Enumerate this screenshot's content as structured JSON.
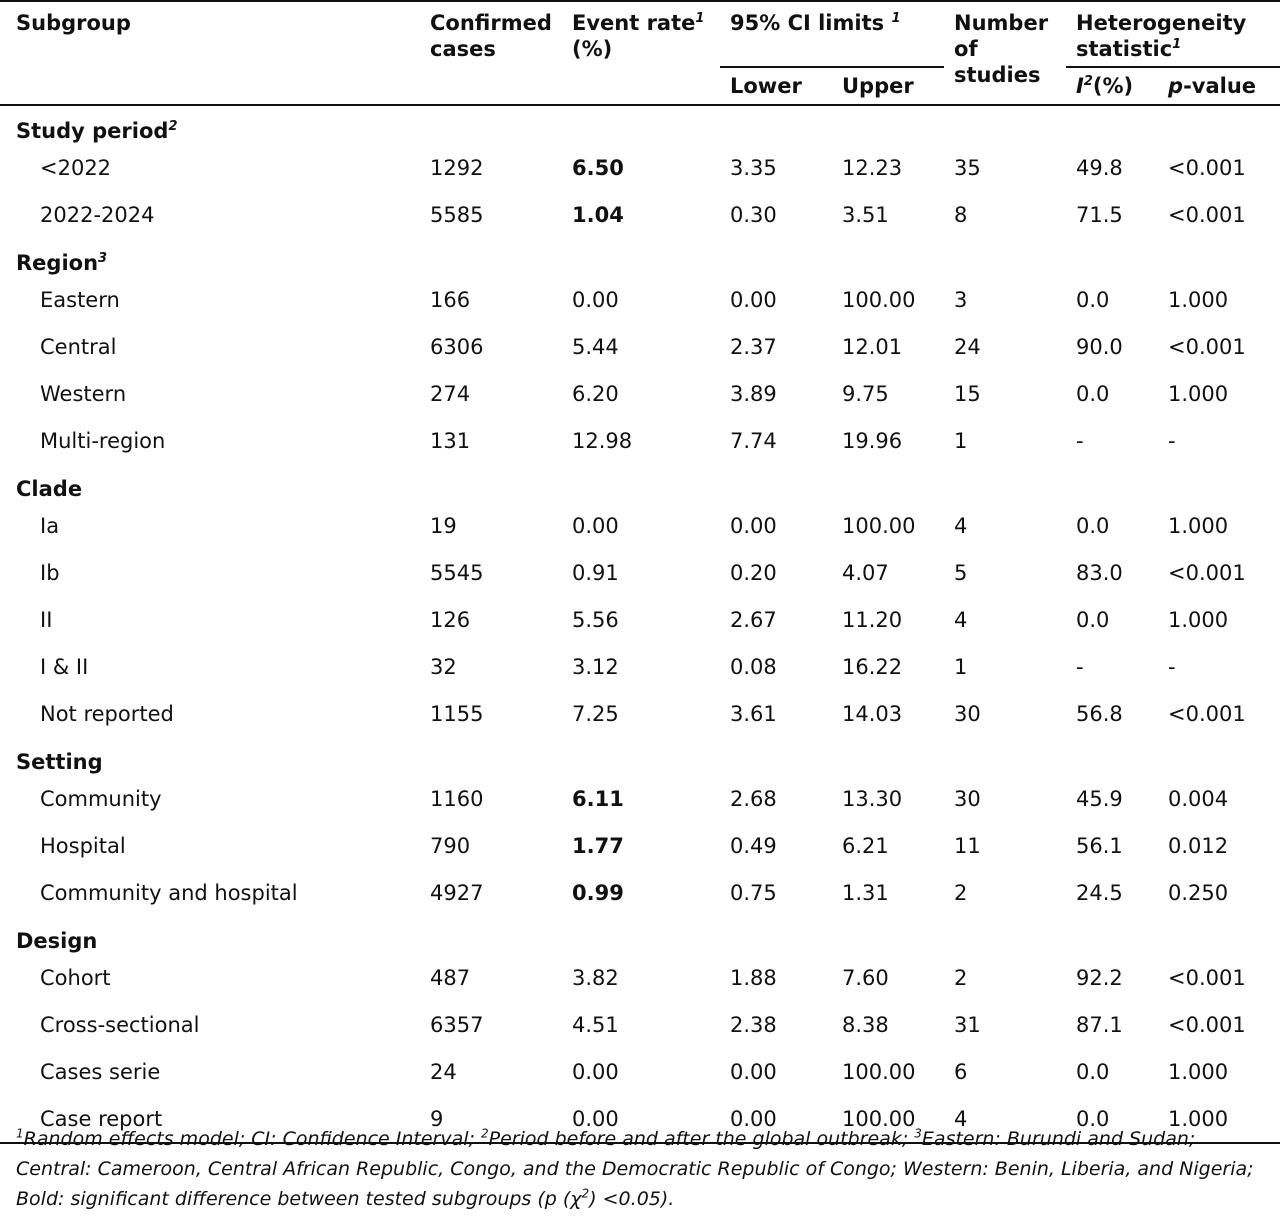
{
  "header": {
    "subgroup": "Subgroup",
    "confirmed_cases_line1": "Confirmed",
    "confirmed_cases_line2": "cases",
    "event_rate_line1": "Event rate",
    "event_rate_sup": "1",
    "event_rate_line2": "(%)",
    "ci_limits": "95% CI limits ",
    "ci_limits_sup": "1",
    "lower": "Lower",
    "upper": "Upper",
    "studies_line1": "Number",
    "studies_line2": "of",
    "studies_line3": "studies",
    "heterogeneity_line1": "Heterogeneity",
    "heterogeneity_line2": "statistic",
    "heterogeneity_sup": "1",
    "i2_letter": "I",
    "i2_sup": "2",
    "i2_unit": "(%)",
    "p_letter": "p",
    "p_rest": "-value"
  },
  "groups": [
    {
      "label": "Study period",
      "sup": "2",
      "rows": [
        {
          "subgroup": "<2022",
          "cases": "1292",
          "rate": "6.50",
          "bold": true,
          "lower": "3.35",
          "upper": "12.23",
          "studies": "35",
          "i2": "49.8",
          "p": "<0.001"
        },
        {
          "subgroup": "2022-2024",
          "cases": "5585",
          "rate": "1.04",
          "bold": true,
          "lower": "0.30",
          "upper": "3.51",
          "studies": "8",
          "i2": "71.5",
          "p": "<0.001"
        }
      ]
    },
    {
      "label": "Region",
      "sup": "3",
      "rows": [
        {
          "subgroup": "Eastern",
          "cases": "166",
          "rate": "0.00",
          "bold": false,
          "lower": "0.00",
          "upper": "100.00",
          "studies": "3",
          "i2": "0.0",
          "p": "1.000"
        },
        {
          "subgroup": "Central",
          "cases": "6306",
          "rate": "5.44",
          "bold": false,
          "lower": "2.37",
          "upper": "12.01",
          "studies": "24",
          "i2": "90.0",
          "p": "<0.001"
        },
        {
          "subgroup": "Western",
          "cases": "274",
          "rate": "6.20",
          "bold": false,
          "lower": "3.89",
          "upper": "9.75",
          "studies": "15",
          "i2": "0.0",
          "p": "1.000"
        },
        {
          "subgroup": "Multi-region",
          "cases": "131",
          "rate": "12.98",
          "bold": false,
          "lower": "7.74",
          "upper": "19.96",
          "studies": "1",
          "i2": "-",
          "p": "-"
        }
      ]
    },
    {
      "label": "Clade",
      "sup": "",
      "rows": [
        {
          "subgroup": "Ia",
          "cases": "19",
          "rate": "0.00",
          "bold": false,
          "lower": "0.00",
          "upper": "100.00",
          "studies": "4",
          "i2": "0.0",
          "p": "1.000"
        },
        {
          "subgroup": "Ib",
          "cases": "5545",
          "rate": "0.91",
          "bold": false,
          "lower": "0.20",
          "upper": "4.07",
          "studies": "5",
          "i2": "83.0",
          "p": "<0.001"
        },
        {
          "subgroup": "II",
          "cases": "126",
          "rate": "5.56",
          "bold": false,
          "lower": "2.67",
          "upper": "11.20",
          "studies": "4",
          "i2": "0.0",
          "p": "1.000"
        },
        {
          "subgroup": "I & II",
          "cases": "32",
          "rate": "3.12",
          "bold": false,
          "lower": "0.08",
          "upper": "16.22",
          "studies": "1",
          "i2": "-",
          "p": "-"
        },
        {
          "subgroup": "Not reported",
          "cases": "1155",
          "rate": "7.25",
          "bold": false,
          "lower": "3.61",
          "upper": "14.03",
          "studies": "30",
          "i2": "56.8",
          "p": "<0.001"
        }
      ]
    },
    {
      "label": "Setting",
      "sup": "",
      "rows": [
        {
          "subgroup": "Community",
          "cases": "1160",
          "rate": "6.11",
          "bold": true,
          "lower": "2.68",
          "upper": "13.30",
          "studies": "30",
          "i2": "45.9",
          "p": "0.004"
        },
        {
          "subgroup": "Hospital",
          "cases": "790",
          "rate": "1.77",
          "bold": true,
          "lower": "0.49",
          "upper": "6.21",
          "studies": "11",
          "i2": "56.1",
          "p": "0.012"
        },
        {
          "subgroup": "Community and hospital",
          "cases": "4927",
          "rate": "0.99",
          "bold": true,
          "lower": "0.75",
          "upper": "1.31",
          "studies": "2",
          "i2": "24.5",
          "p": "0.250"
        }
      ]
    },
    {
      "label": "Design",
      "sup": "",
      "rows": [
        {
          "subgroup": "Cohort",
          "cases": "487",
          "rate": "3.82",
          "bold": false,
          "lower": "1.88",
          "upper": "7.60",
          "studies": "2",
          "i2": "92.2",
          "p": "<0.001"
        },
        {
          "subgroup": "Cross-sectional",
          "cases": "6357",
          "rate": "4.51",
          "bold": false,
          "lower": "2.38",
          "upper": "8.38",
          "studies": "31",
          "i2": "87.1",
          "p": "<0.001"
        },
        {
          "subgroup": "Cases serie",
          "cases": "24",
          "rate": "0.00",
          "bold": false,
          "lower": "0.00",
          "upper": "100.00",
          "studies": "6",
          "i2": "0.0",
          "p": "1.000"
        },
        {
          "subgroup": "Case report",
          "cases": "9",
          "rate": "0.00",
          "bold": false,
          "lower": "0.00",
          "upper": "100.00",
          "studies": "4",
          "i2": "0.0",
          "p": "1.000"
        }
      ]
    }
  ],
  "footnote": {
    "sup1": "1",
    "text1": "Random effects model; CI: Confidence Interval; ",
    "sup2": "2",
    "text2": "Period before and after the global outbreak; ",
    "sup3": "3",
    "text3": "Eastern: Burundi and Sudan; Central: Cameroon, Central African Republic, Congo, and the Democratic Republic of Congo; Western: Benin, Liberia, and Nigeria; Bold: significant difference between tested subgroups (p (χ",
    "chi_sup": "2",
    "text4": ") <0.05)."
  }
}
